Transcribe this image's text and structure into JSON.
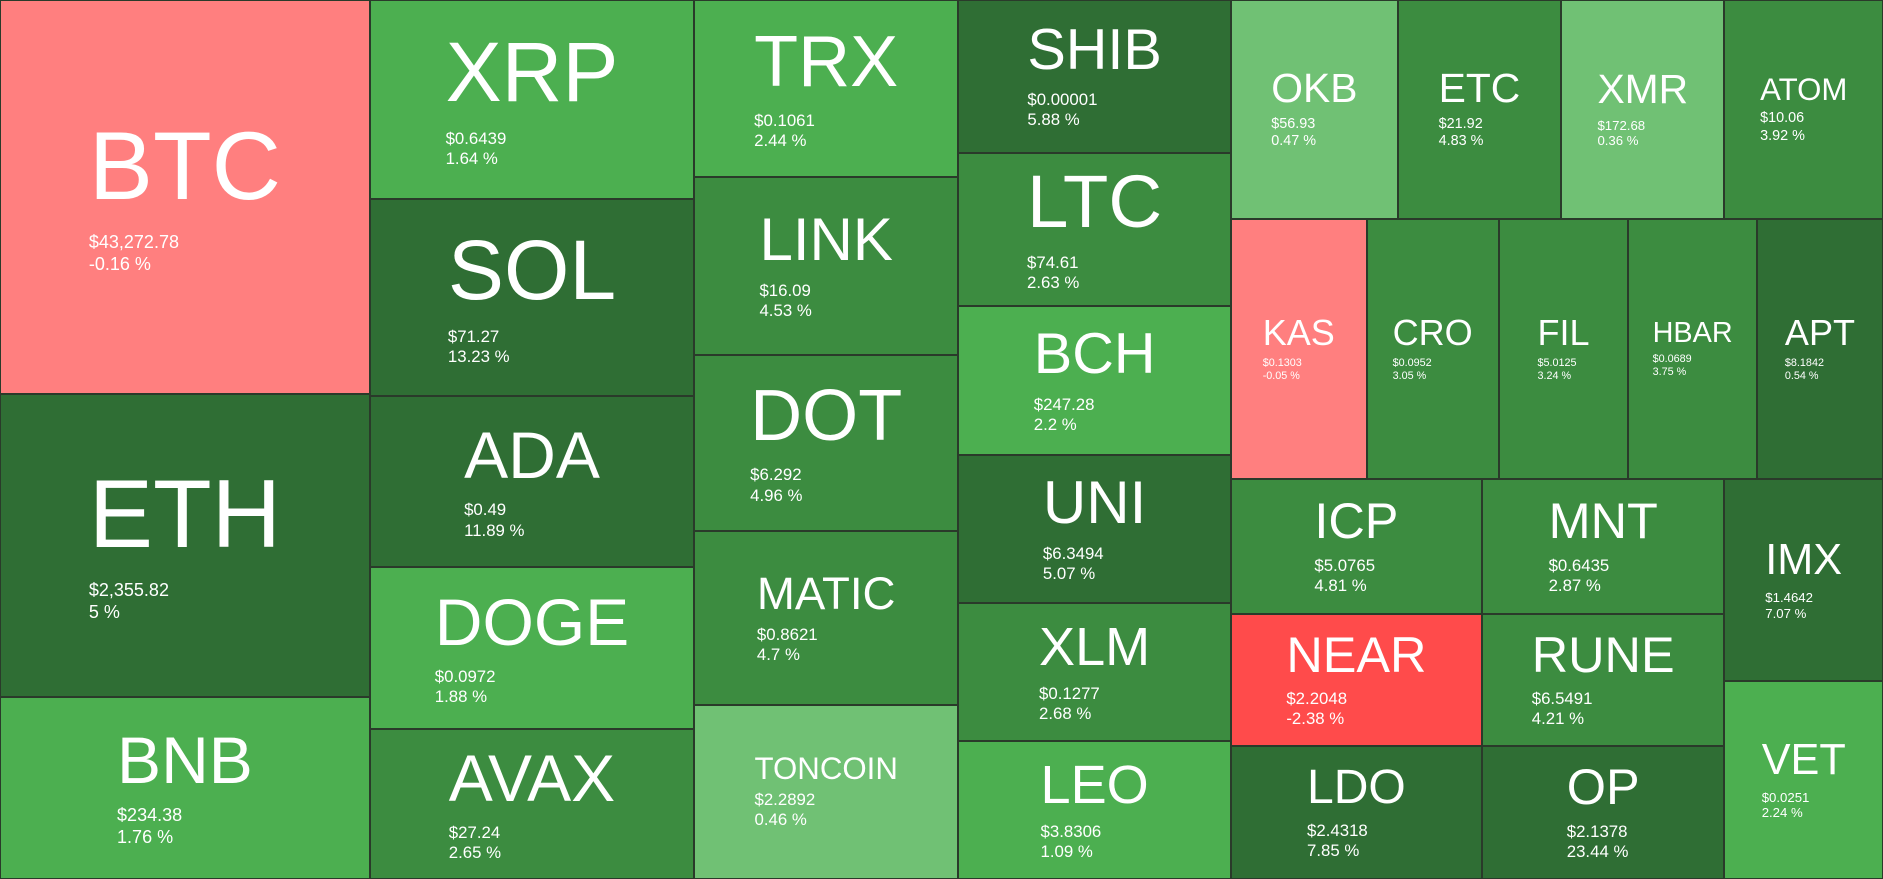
{
  "tiles": [
    {
      "symbol": "BTC",
      "price": "$43,272.78",
      "change": "-0.16 %"
    },
    {
      "symbol": "ETH",
      "price": "$2,355.82",
      "change": "5 %"
    },
    {
      "symbol": "BNB",
      "price": "$234.38",
      "change": "1.76 %"
    },
    {
      "symbol": "XRP",
      "price": "$0.6439",
      "change": "1.64 %"
    },
    {
      "symbol": "SOL",
      "price": "$71.27",
      "change": "13.23 %"
    },
    {
      "symbol": "ADA",
      "price": "$0.49",
      "change": "11.89 %"
    },
    {
      "symbol": "DOGE",
      "price": "$0.0972",
      "change": "1.88 %"
    },
    {
      "symbol": "AVAX",
      "price": "$27.24",
      "change": "2.65 %"
    },
    {
      "symbol": "TRX",
      "price": "$0.1061",
      "change": "2.44 %"
    },
    {
      "symbol": "LINK",
      "price": "$16.09",
      "change": "4.53 %"
    },
    {
      "symbol": "DOT",
      "price": "$6.292",
      "change": "4.96 %"
    },
    {
      "symbol": "MATIC",
      "price": "$0.8621",
      "change": "4.7 %"
    },
    {
      "symbol": "TONCOIN",
      "price": "$2.2892",
      "change": "0.46 %"
    },
    {
      "symbol": "SHIB",
      "price": "$0.00001",
      "change": "5.88 %"
    },
    {
      "symbol": "LTC",
      "price": "$74.61",
      "change": "2.63 %"
    },
    {
      "symbol": "BCH",
      "price": "$247.28",
      "change": "2.2 %"
    },
    {
      "symbol": "UNI",
      "price": "$6.3494",
      "change": "5.07 %"
    },
    {
      "symbol": "XLM",
      "price": "$0.1277",
      "change": "2.68 %"
    },
    {
      "symbol": "LEO",
      "price": "$3.8306",
      "change": "1.09 %"
    },
    {
      "symbol": "OKB",
      "price": "$56.93",
      "change": "0.47 %"
    },
    {
      "symbol": "ETC",
      "price": "$21.92",
      "change": "4.83 %"
    },
    {
      "symbol": "XMR",
      "price": "$172.68",
      "change": "0.36 %"
    },
    {
      "symbol": "ATOM",
      "price": "$10.06",
      "change": "3.92 %"
    },
    {
      "symbol": "KAS",
      "price": "$0.1303",
      "change": "-0.05 %"
    },
    {
      "symbol": "CRO",
      "price": "$0.0952",
      "change": "3.05 %"
    },
    {
      "symbol": "FIL",
      "price": "$5.0125",
      "change": "3.24 %"
    },
    {
      "symbol": "HBAR",
      "price": "$0.0689",
      "change": "3.75 %"
    },
    {
      "symbol": "APT",
      "price": "$8.1842",
      "change": "0.54 %"
    },
    {
      "symbol": "ICP",
      "price": "$5.0765",
      "change": "4.81 %"
    },
    {
      "symbol": "MNT",
      "price": "$0.6435",
      "change": "2.87 %"
    },
    {
      "symbol": "NEAR",
      "price": "$2.2048",
      "change": "-2.38 %"
    },
    {
      "symbol": "RUNE",
      "price": "$6.5491",
      "change": "4.21 %"
    },
    {
      "symbol": "LDO",
      "price": "$2.4318",
      "change": "7.85 %"
    },
    {
      "symbol": "OP",
      "price": "$2.1378",
      "change": "23.44 %"
    },
    {
      "symbol": "IMX",
      "price": "$1.4642",
      "change": "7.07 %"
    },
    {
      "symbol": "VET",
      "price": "$0.0251",
      "change": "2.24 %"
    }
  ]
}
